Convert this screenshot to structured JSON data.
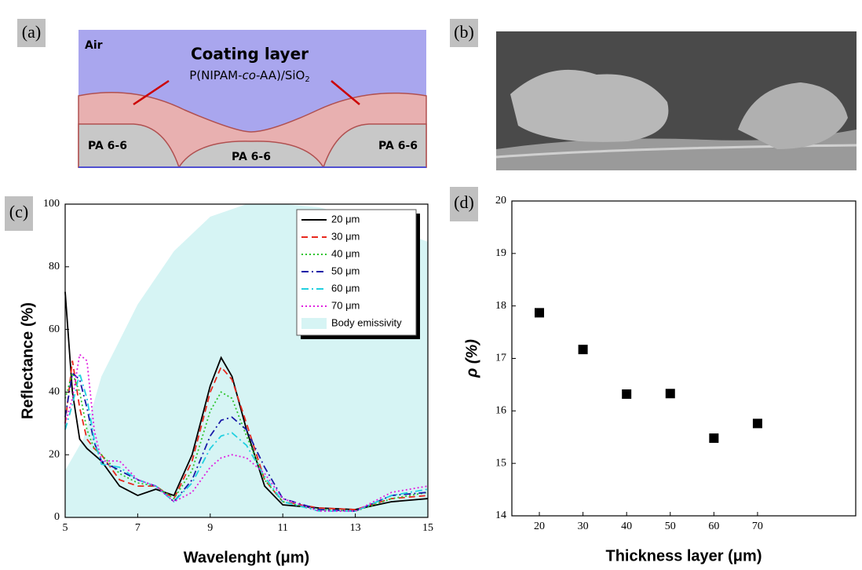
{
  "panels": {
    "a": {
      "label": "(a)",
      "air": "Air",
      "title": "Coating layer",
      "formula": [
        "P(NIPAM-",
        "co",
        "-AA)/SiO",
        "2"
      ],
      "substrate": [
        "PA 6-6",
        "PA 6-6",
        "PA 6-6"
      ]
    },
    "b": {
      "label": "(b)"
    },
    "c": {
      "label": "(c)"
    },
    "d": {
      "label": "(d)"
    }
  },
  "chart_data": [
    {
      "type": "line",
      "xlabel": "Wavelenght (μm)",
      "ylabel": "Reflectance (%)",
      "x": [
        5.0,
        5.2,
        5.4,
        5.6,
        5.8,
        6.0,
        6.5,
        7.0,
        7.5,
        8.0,
        8.5,
        9.0,
        9.3,
        9.6,
        10.0,
        10.5,
        11,
        12,
        13,
        14,
        15
      ],
      "xlim": [
        5,
        15
      ],
      "xticks": [
        5,
        7,
        9,
        11,
        13,
        15
      ],
      "ylim": [
        0,
        100
      ],
      "yticks": [
        0,
        20,
        40,
        60,
        80,
        100
      ],
      "legend": "upper right",
      "series": [
        {
          "name": "20 μm",
          "color": "#000000",
          "dash": "solid",
          "values": [
            72,
            40,
            25,
            22,
            20,
            18,
            10,
            7,
            9,
            7,
            20,
            42,
            51,
            45,
            28,
            10,
            4,
            3,
            2.5,
            5,
            6
          ]
        },
        {
          "name": "30 μm",
          "color": "#e8281e",
          "dash": "dashed",
          "values": [
            30,
            50,
            35,
            25,
            22,
            20,
            12,
            10,
            10,
            6,
            18,
            40,
            48,
            44,
            30,
            12,
            5,
            3,
            2.5,
            6,
            7
          ]
        },
        {
          "name": "40 μm",
          "color": "#2ec42e",
          "dash": "dotted",
          "values": [
            38,
            46,
            40,
            28,
            22,
            20,
            14,
            11,
            10,
            6,
            15,
            34,
            40,
            38,
            26,
            12,
            5,
            2.5,
            2,
            6,
            8
          ]
        },
        {
          "name": "50 μm",
          "color": "#1a1aa8",
          "dash": "dashdot",
          "values": [
            32,
            46,
            44,
            35,
            24,
            18,
            15,
            12,
            10,
            5,
            12,
            26,
            31,
            32,
            28,
            16,
            6,
            2.5,
            2,
            7,
            8
          ]
        },
        {
          "name": "60 μm",
          "color": "#22d0e0",
          "dash": "dashdot",
          "values": [
            28,
            36,
            46,
            38,
            25,
            17,
            16,
            12,
            10,
            5,
            11,
            22,
            26,
            27,
            23,
            13,
            5,
            2,
            2,
            7,
            9
          ]
        },
        {
          "name": "70 μm",
          "color": "#e020e0",
          "dash": "dotted",
          "values": [
            30,
            38,
            52,
            50,
            28,
            18,
            18,
            12,
            10,
            5,
            8,
            16,
            19,
            20,
            19,
            14,
            6,
            2,
            2,
            8,
            10
          ]
        },
        {
          "name": "Body emissivity",
          "color": "#d6f4f4",
          "type": "area",
          "x": [
            5,
            5.5,
            6,
            7,
            8,
            9,
            10,
            11,
            12,
            13,
            14,
            15
          ],
          "values": [
            15,
            25,
            45,
            68,
            85,
            96,
            100,
            100,
            99,
            96,
            92,
            88
          ]
        }
      ]
    },
    {
      "type": "scatter",
      "xlabel": "Thickness layer (μm)",
      "ylabel": "ρ (%)",
      "x": [
        20,
        30,
        40,
        50,
        60,
        70
      ],
      "values": [
        17.87,
        17.17,
        16.32,
        16.33,
        15.48,
        15.76
      ],
      "color": "#000000",
      "xlim": [
        13.7,
        92.5
      ],
      "xticks": [
        20,
        30,
        40,
        50,
        60,
        70
      ],
      "ylim": [
        14,
        20
      ],
      "yticks": [
        14,
        15,
        16,
        17,
        18,
        19,
        20
      ]
    }
  ]
}
